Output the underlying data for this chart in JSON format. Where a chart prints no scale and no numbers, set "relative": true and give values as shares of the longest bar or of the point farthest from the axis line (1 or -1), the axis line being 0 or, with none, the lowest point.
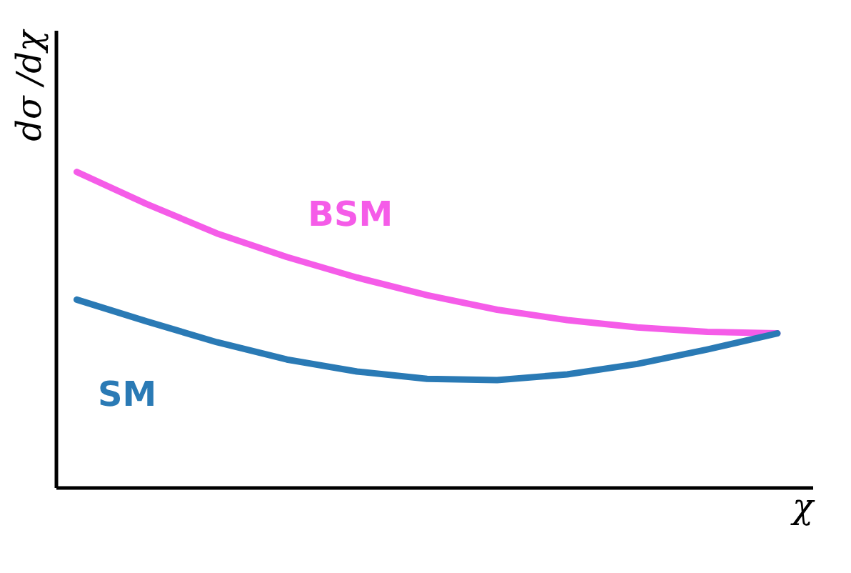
{
  "chart_data": {
    "type": "line",
    "relative": true,
    "xlabel": "χ",
    "ylabel": "dσ /dχ",
    "legend": false,
    "marker": "none",
    "line_style": "solid",
    "categories": [
      null,
      null,
      null,
      null,
      null,
      null,
      null,
      null,
      null,
      null,
      null
    ],
    "series": [
      {
        "name": "BSM",
        "color": "#f55ce8",
        "values": [
          1,
          0.898,
          0.805,
          0.73,
          0.665,
          0.609,
          0.563,
          0.53,
          0.507,
          0.493,
          0.488
        ]
      },
      {
        "name": "SM",
        "color": "#2a7ab5",
        "values": [
          0.595,
          0.526,
          0.46,
          0.405,
          0.367,
          0.344,
          0.34,
          0.358,
          0.391,
          0.437,
          0.488
        ]
      }
    ]
  }
}
